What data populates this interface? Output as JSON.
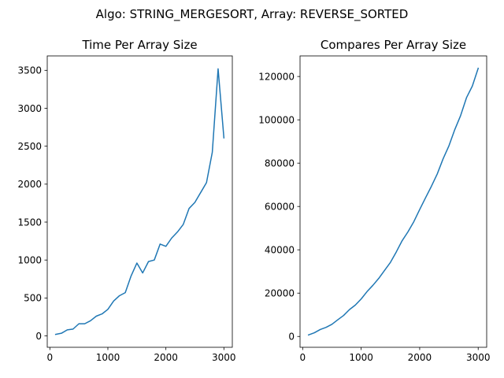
{
  "figure": {
    "suptitle": "Algo: STRING_MERGESORT, Array: REVERSE_SORTED"
  },
  "chart_data": [
    {
      "type": "line",
      "title": "Time Per Array Size",
      "xlabel": "",
      "ylabel": "",
      "xlim": [
        -45,
        3145
      ],
      "ylim": [
        -150,
        3690
      ],
      "xticks": [
        0,
        1000,
        2000,
        3000
      ],
      "yticks": [
        0,
        500,
        1000,
        1500,
        2000,
        2500,
        3000,
        3500
      ],
      "grid": false,
      "line_color": "#1f77b4",
      "series": [
        {
          "x": [
            100,
            200,
            300,
            400,
            500,
            600,
            700,
            800,
            900,
            1000,
            1100,
            1200,
            1300,
            1400,
            1500,
            1600,
            1700,
            1800,
            1900,
            2000,
            2100,
            2200,
            2300,
            2400,
            2500,
            2600,
            2700,
            2800,
            2900,
            3000
          ],
          "y": [
            20,
            35,
            80,
            90,
            160,
            160,
            200,
            260,
            290,
            350,
            460,
            530,
            570,
            790,
            960,
            830,
            980,
            1000,
            1210,
            1180,
            1290,
            1370,
            1470,
            1680,
            1760,
            1890,
            2020,
            2420,
            3520,
            2610
          ]
        }
      ]
    },
    {
      "type": "line",
      "title": "Compares Per Array Size",
      "xlabel": "",
      "ylabel": "",
      "xlim": [
        -45,
        3145
      ],
      "ylim": [
        -5000,
        129500
      ],
      "xticks": [
        0,
        1000,
        2000,
        3000
      ],
      "yticks": [
        0,
        20000,
        40000,
        60000,
        80000,
        100000,
        120000
      ],
      "grid": false,
      "line_color": "#1f77b4",
      "series": [
        {
          "x": [
            100,
            200,
            300,
            400,
            500,
            600,
            700,
            800,
            900,
            1000,
            1100,
            1200,
            1300,
            1400,
            1500,
            1600,
            1700,
            1800,
            1900,
            2000,
            2100,
            2200,
            2300,
            2400,
            2500,
            2600,
            2700,
            2800,
            2900,
            3000
          ],
          "y": [
            700,
            1700,
            3200,
            4200,
            5600,
            7700,
            9700,
            12400,
            14500,
            17300,
            20700,
            23600,
            26800,
            30500,
            34200,
            39000,
            44200,
            48300,
            53000,
            58600,
            64000,
            69300,
            75000,
            82000,
            88000,
            95500,
            102000,
            110200,
            115600,
            123800
          ]
        }
      ]
    }
  ]
}
